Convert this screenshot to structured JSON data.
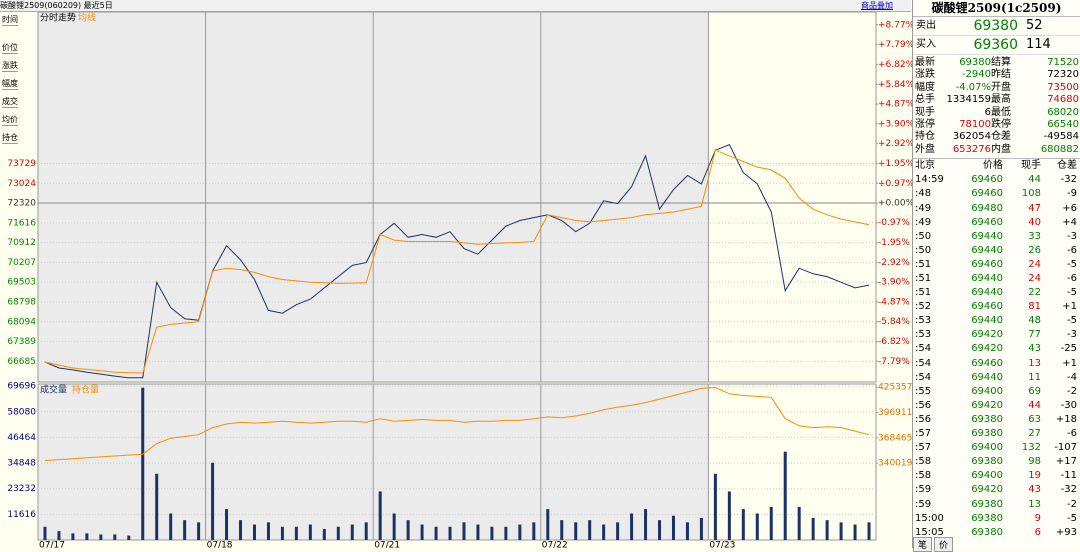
{
  "header": {
    "title": "碳酸锂2509(060209) 最近5日",
    "button": "商品叠加"
  },
  "side_labels": [
    "时间",
    "价位",
    "涨跌",
    "幅度",
    "成交",
    "均价",
    "持仓"
  ],
  "chart_data": [
    {
      "type": "line",
      "title": "分时走势",
      "xlim": [
        0,
        60
      ],
      "xticks": [
        {
          "value": 0,
          "label": "07/17"
        },
        {
          "value": 12,
          "label": "07/18"
        },
        {
          "value": 24,
          "label": "07/21"
        },
        {
          "value": 36,
          "label": "07/22"
        },
        {
          "value": 48,
          "label": "07/23"
        }
      ],
      "ylim": [
        65950,
        79120
      ],
      "yticks": [
        73729,
        73024,
        72320,
        71616,
        70912,
        70207,
        69503,
        68798,
        68094,
        67389,
        66685
      ],
      "y2lim": [
        -8.81,
        9.4
      ],
      "y2ticks": [
        {
          "value": 8.77,
          "label": "+8.77%"
        },
        {
          "value": 7.79,
          "label": "+7.79%"
        },
        {
          "value": 6.82,
          "label": "+6.82%"
        },
        {
          "value": 5.84,
          "label": "+5.84%"
        },
        {
          "value": 4.87,
          "label": "+4.87%"
        },
        {
          "value": 3.9,
          "label": "+3.90%"
        },
        {
          "value": 2.92,
          "label": "+2.92%"
        },
        {
          "value": 1.95,
          "label": "+1.95%"
        },
        {
          "value": 0.97,
          "label": "+0.97%"
        },
        {
          "value": 0,
          "label": "+0.00%"
        },
        {
          "value": -0.97,
          "label": "-0.97%"
        },
        {
          "value": -1.95,
          "label": "-1.95%"
        },
        {
          "value": -2.92,
          "label": "-2.92%"
        },
        {
          "value": -3.9,
          "label": "-3.90%"
        },
        {
          "value": -4.87,
          "label": "-4.87%"
        },
        {
          "value": -5.84,
          "label": "-5.84%"
        },
        {
          "value": -6.82,
          "label": "-6.82%"
        },
        {
          "value": -7.79,
          "label": "-7.79%"
        }
      ],
      "series": [
        {
          "color": "#1a3366",
          "values": [
            66660,
            66450,
            66380,
            66300,
            66230,
            66160,
            66100,
            66100,
            69500,
            68600,
            68200,
            68150,
            69900,
            70800,
            70300,
            69600,
            68500,
            68400,
            68700,
            68900,
            69300,
            69700,
            70100,
            70200,
            71200,
            71600,
            71100,
            71200,
            71100,
            71300,
            70700,
            70500,
            71000,
            71500,
            71700,
            71800,
            71900,
            71700,
            71300,
            71600,
            72400,
            72300,
            72900,
            74000,
            72100,
            72800,
            73300,
            73000,
            74200,
            74400,
            73400,
            73000,
            72000,
            69200,
            70000,
            69800,
            69700,
            69500,
            69300,
            69400
          ]
        },
        {
          "name": "均线",
          "color": "#ff8c00",
          "values": [
            66660,
            66550,
            66450,
            66400,
            66350,
            66300,
            66280,
            66270,
            67900,
            68000,
            68050,
            68100,
            69900,
            70000,
            69950,
            69850,
            69700,
            69600,
            69550,
            69500,
            69480,
            69460,
            69470,
            69480,
            71200,
            71000,
            70950,
            70950,
            70950,
            70950,
            70900,
            70850,
            70880,
            70900,
            70920,
            70950,
            71900,
            71800,
            71700,
            71650,
            71700,
            71750,
            71800,
            71900,
            71950,
            72000,
            72100,
            72200,
            74200,
            74000,
            73800,
            73600,
            73500,
            73200,
            72500,
            72100,
            71900,
            71750,
            71650,
            71550
          ]
        }
      ]
    },
    {
      "type": "bar",
      "xlim": [
        0,
        60
      ],
      "ylim": [
        0,
        70660
      ],
      "yticks": [
        69696,
        58080,
        46464,
        34848,
        23232,
        11616
      ],
      "y2lim": [
        253600,
        428960
      ],
      "y2ticks": [
        425357,
        396911,
        368465,
        340019
      ],
      "series": [
        {
          "name": "成交量",
          "color": "#1a3366",
          "values": [
            6000,
            4000,
            3000,
            3000,
            2500,
            2500,
            2000,
            69000,
            30000,
            12000,
            9000,
            8000,
            35000,
            14000,
            9000,
            7000,
            8000,
            6000,
            6000,
            7000,
            5000,
            6000,
            7000,
            8000,
            22000,
            12000,
            9000,
            7000,
            6000,
            6000,
            8000,
            7000,
            6000,
            6000,
            7000,
            8000,
            14000,
            9000,
            8000,
            9000,
            7000,
            8000,
            12000,
            14000,
            9000,
            11000,
            8000,
            10000,
            30000,
            22000,
            14000,
            12000,
            15000,
            40000,
            15000,
            10000,
            9000,
            8000,
            7000,
            8000
          ]
        },
        {
          "name": "持仓量",
          "color": "#ff8c00",
          "axis": "y2",
          "values": [
            343000,
            344000,
            345000,
            346000,
            347000,
            348000,
            349000,
            350000,
            362000,
            368000,
            370000,
            372000,
            380000,
            384000,
            386000,
            385000,
            386000,
            387000,
            386000,
            385000,
            386000,
            387000,
            387000,
            386000,
            390000,
            387000,
            388000,
            389000,
            388000,
            388000,
            386000,
            387000,
            387000,
            388000,
            388000,
            390000,
            392000,
            391000,
            393000,
            396000,
            400000,
            403000,
            405000,
            408000,
            412000,
            416000,
            420000,
            424000,
            425000,
            418000,
            416000,
            415000,
            414000,
            390000,
            382000,
            380000,
            381000,
            380000,
            376000,
            372000
          ]
        }
      ]
    }
  ],
  "panel": {
    "title": "碳酸锂2509(1c2509)",
    "book": [
      {
        "label": "卖出",
        "price": 69380,
        "vol": 52
      },
      {
        "label": "买入",
        "price": 69360,
        "vol": 114
      }
    ],
    "quote": [
      {
        "label": "最新",
        "value": 69380,
        "color": "#008000"
      },
      {
        "label": "结算",
        "value": 71520,
        "color": "#008000"
      },
      {
        "label": "涨跌",
        "value": -2940,
        "color": "#008000"
      },
      {
        "label": "昨结",
        "value": 72320,
        "color": "#000"
      },
      {
        "label": "幅度",
        "value": "-4.07%",
        "color": "#008000"
      },
      {
        "label": "开盘",
        "value": 73500,
        "color": "#e00000"
      },
      {
        "label": "总手",
        "value": 1334159,
        "color": "#000"
      },
      {
        "label": "最高",
        "value": 74680,
        "color": "#e00000"
      },
      {
        "label": "现手",
        "value": 6,
        "color": "#000"
      },
      {
        "label": "最低",
        "value": 68020,
        "color": "#008000"
      },
      {
        "label": "涨停",
        "value": 78100,
        "color": "#e00000"
      },
      {
        "label": "跌停",
        "value": 66540,
        "color": "#008000"
      },
      {
        "label": "持仓",
        "value": 362054,
        "color": "#000"
      },
      {
        "label": "仓差",
        "value": -49584,
        "color": "#000"
      },
      {
        "label": "外盘",
        "value": 653276,
        "color": "#e00000"
      },
      {
        "label": "内盘",
        "value": 680882,
        "color": "#008000"
      }
    ],
    "trade_header": [
      "北京",
      "价格",
      "现手",
      "仓差"
    ],
    "trades": [
      {
        "time": "14:59",
        "price": 69460,
        "vol": 44,
        "diff": -32,
        "color": "#008000"
      },
      {
        "time": ":48",
        "price": 69460,
        "vol": 108,
        "diff": -9,
        "color": "#008000"
      },
      {
        "time": ":49",
        "price": 69480,
        "vol": 47,
        "diff": "+6",
        "color": "#e00000"
      },
      {
        "time": ":49",
        "price": 69460,
        "vol": 40,
        "diff": "+4",
        "color": "#e00000"
      },
      {
        "time": ":50",
        "price": 69440,
        "vol": 33,
        "diff": -3,
        "color": "#008000"
      },
      {
        "time": ":50",
        "price": 69440,
        "vol": 26,
        "diff": -6,
        "color": "#008000"
      },
      {
        "time": ":51",
        "price": 69460,
        "vol": 24,
        "diff": -5,
        "color": "#e00000"
      },
      {
        "time": ":51",
        "price": 69440,
        "vol": 24,
        "diff": -6,
        "color": "#e00000"
      },
      {
        "time": ":51",
        "price": 69440,
        "vol": 22,
        "diff": -5,
        "color": "#008000"
      },
      {
        "time": ":52",
        "price": 69460,
        "vol": 81,
        "diff": "+1",
        "color": "#e00000"
      },
      {
        "time": ":53",
        "price": 69440,
        "vol": 48,
        "diff": -5,
        "color": "#008000"
      },
      {
        "time": ":53",
        "price": 69420,
        "vol": 77,
        "diff": -3,
        "color": "#008000"
      },
      {
        "time": ":54",
        "price": 69420,
        "vol": 43,
        "diff": -25,
        "color": "#008000"
      },
      {
        "time": ":54",
        "price": 69460,
        "vol": 13,
        "diff": "+1",
        "color": "#e00000"
      },
      {
        "time": ":54",
        "price": 69440,
        "vol": 11,
        "diff": -4,
        "color": "#008000"
      },
      {
        "time": ":55",
        "price": 69400,
        "vol": 69,
        "diff": -2,
        "color": "#008000"
      },
      {
        "time": ":56",
        "price": 69420,
        "vol": 44,
        "diff": -30,
        "color": "#e00000"
      },
      {
        "time": ":56",
        "price": 69380,
        "vol": 63,
        "diff": "+18",
        "color": "#008000"
      },
      {
        "time": ":57",
        "price": 69380,
        "vol": 27,
        "diff": -6,
        "color": "#008000"
      },
      {
        "time": ":57",
        "price": 69400,
        "vol": 132,
        "diff": -107,
        "color": "#008000"
      },
      {
        "time": ":58",
        "price": 69380,
        "vol": 98,
        "diff": "+17",
        "color": "#008000"
      },
      {
        "time": ":58",
        "price": 69400,
        "vol": 19,
        "diff": -11,
        "color": "#e00000"
      },
      {
        "time": ":59",
        "price": 69420,
        "vol": 43,
        "diff": -32,
        "color": "#e00000"
      },
      {
        "time": ":59",
        "price": 69380,
        "vol": 13,
        "diff": -2,
        "color": "#008000"
      },
      {
        "time": "15:00",
        "price": 69380,
        "vol": 9,
        "diff": -5,
        "color": "#e00000"
      },
      {
        "time": "15:05",
        "price": 69380,
        "vol": 6,
        "diff": "+93",
        "color": "#e00000"
      }
    ],
    "tabs": [
      "笔",
      "价"
    ]
  }
}
